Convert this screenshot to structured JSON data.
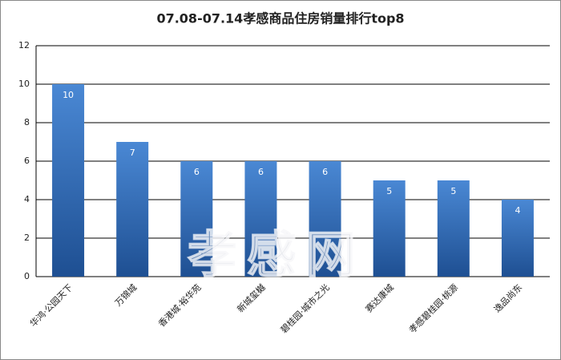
{
  "chart_data": {
    "type": "bar",
    "title": "07.08-07.14孝感商品住房销量排行top8",
    "categories": [
      "华鸿·公园天下",
      "万锦城",
      "香港城·裕华苑",
      "新城玺樾",
      "碧桂园·城市之光",
      "赛达康城",
      "孝感碧桂园·桃源",
      "逸品尚东"
    ],
    "values": [
      10,
      7,
      6,
      6,
      6,
      5,
      5,
      4
    ],
    "color": "#2f6bb5",
    "ylim": [
      0,
      12
    ],
    "yticks": [
      0,
      2,
      4,
      6,
      8,
      10,
      12
    ],
    "grid": true,
    "watermark": "孝感网"
  }
}
